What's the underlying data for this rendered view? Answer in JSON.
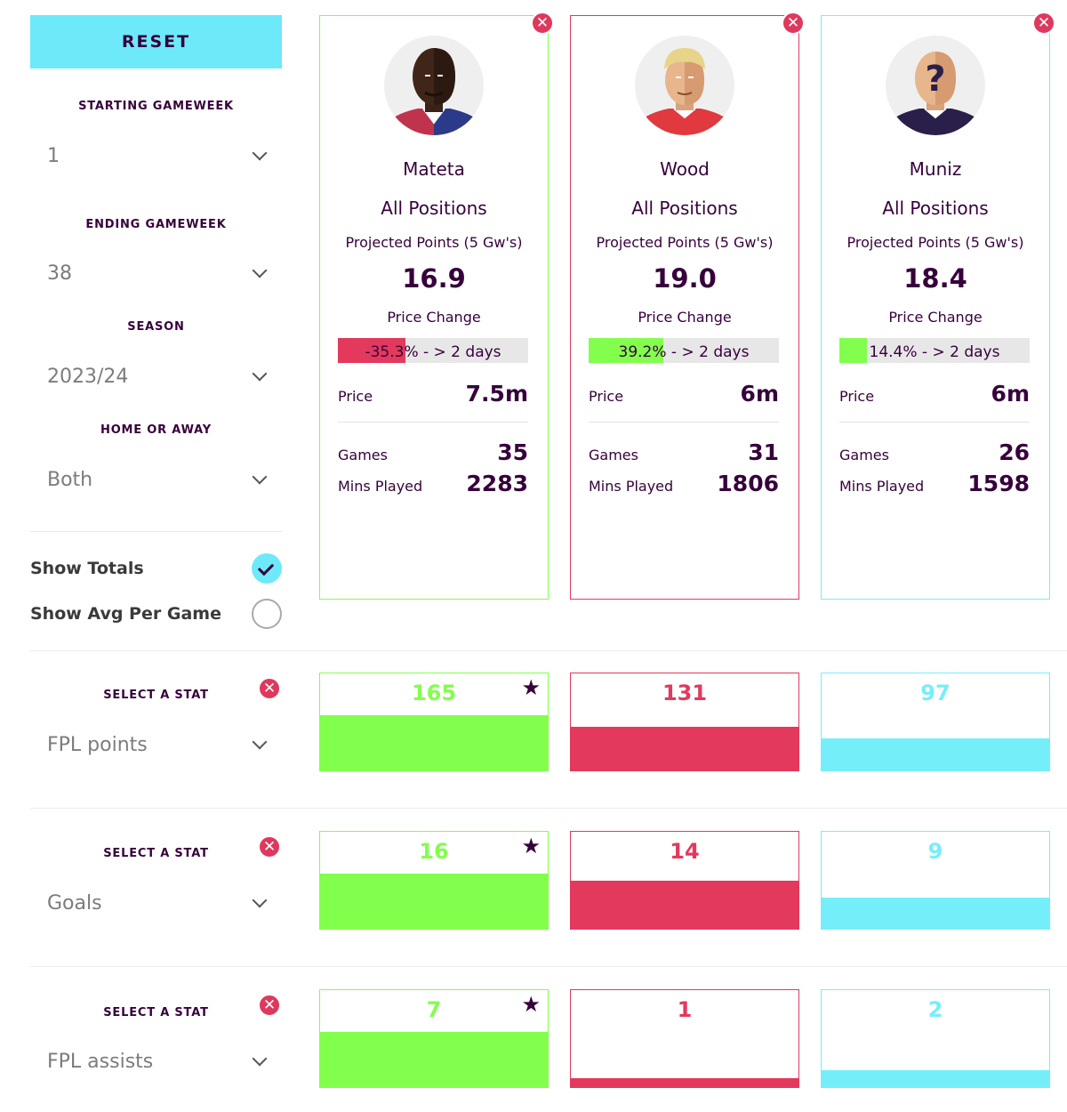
{
  "sidebar": {
    "reset_label": "RESET",
    "starting_gameweek": {
      "label": "STARTING GAMEWEEK",
      "value": "1"
    },
    "ending_gameweek": {
      "label": "ENDING GAMEWEEK",
      "value": "38"
    },
    "season": {
      "label": "SEASON",
      "value": "2023/24"
    },
    "home_away": {
      "label": "HOME OR AWAY",
      "value": "Both"
    },
    "show_totals": {
      "label": "Show Totals",
      "checked": true
    },
    "show_avg": {
      "label": "Show Avg Per Game",
      "checked": false
    }
  },
  "colors": {
    "green": "#82ff4d",
    "red": "#e3395d",
    "cyan": "#74effa",
    "purple": "#37003c",
    "grey_track": "#e7e7e7"
  },
  "players": [
    {
      "name": "Mateta",
      "position": "All Positions",
      "projected_label": "Projected Points (5 Gw's)",
      "projected": "16.9",
      "price_change_label": "Price Change",
      "price_change_text": "-35.3% - > 2 days",
      "price_change_fraction": 0.353,
      "price_label": "Price",
      "price": "7.5m",
      "games_label": "Games",
      "games": "35",
      "mins_label": "Mins Played",
      "mins": "2283",
      "accent": "green",
      "avatar_icon": "player-dark-skin-icon"
    },
    {
      "name": "Wood",
      "position": "All Positions",
      "projected_label": "Projected Points (5 Gw's)",
      "projected": "19.0",
      "price_change_label": "Price Change",
      "price_change_text": "39.2% - > 2 days",
      "price_change_fraction": 0.392,
      "price_label": "Price",
      "price": "6m",
      "games_label": "Games",
      "games": "31",
      "mins_label": "Mins Played",
      "mins": "1806",
      "accent": "red",
      "avatar_icon": "player-blonde-icon"
    },
    {
      "name": "Muniz",
      "position": "All Positions",
      "projected_label": "Projected Points (5 Gw's)",
      "projected": "18.4",
      "price_change_label": "Price Change",
      "price_change_text": "14.4% - > 2 days",
      "price_change_fraction": 0.144,
      "price_label": "Price",
      "price": "6m",
      "games_label": "Games",
      "games": "26",
      "mins_label": "Mins Played",
      "mins": "1598",
      "accent": "cyan",
      "avatar_icon": "player-unknown-icon"
    }
  ],
  "stats": [
    {
      "label": "SELECT A STAT",
      "stat": "FPL points",
      "values": [
        "165",
        "131",
        "97"
      ],
      "fractions": [
        0.57,
        0.45,
        0.33
      ],
      "best_index": 0
    },
    {
      "label": "SELECT A STAT",
      "stat": "Goals",
      "values": [
        "16",
        "14",
        "9"
      ],
      "fractions": [
        0.57,
        0.5,
        0.32
      ],
      "best_index": 0
    },
    {
      "label": "SELECT A STAT",
      "stat": "FPL assists",
      "values": [
        "7",
        "1",
        "2"
      ],
      "fractions": [
        0.57,
        0.09,
        0.17
      ],
      "best_index": 0
    }
  ]
}
